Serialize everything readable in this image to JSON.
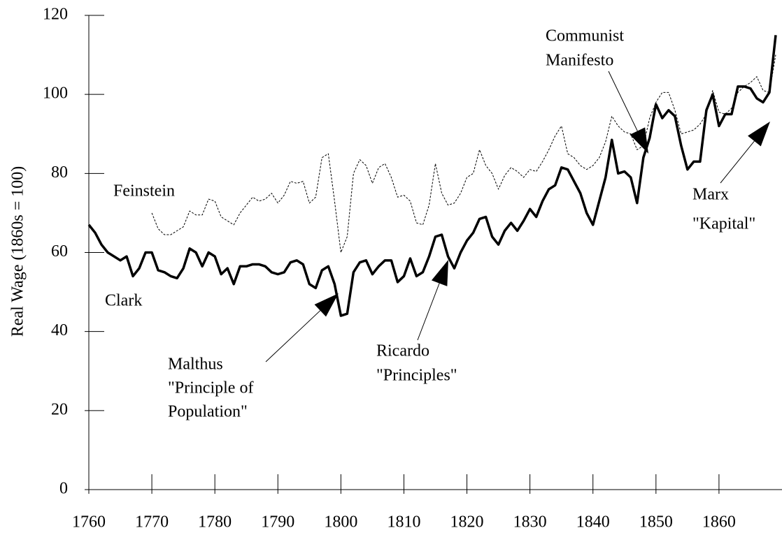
{
  "chart_data": {
    "type": "line",
    "y_label": "Real Wage (1860s = 100)",
    "x": [
      1760,
      1761,
      1762,
      1763,
      1764,
      1765,
      1766,
      1767,
      1768,
      1769,
      1770,
      1771,
      1772,
      1773,
      1774,
      1775,
      1776,
      1777,
      1778,
      1779,
      1780,
      1781,
      1782,
      1783,
      1784,
      1785,
      1786,
      1787,
      1788,
      1789,
      1790,
      1791,
      1792,
      1793,
      1794,
      1795,
      1796,
      1797,
      1798,
      1799,
      1800,
      1801,
      1802,
      1803,
      1804,
      1805,
      1806,
      1807,
      1808,
      1809,
      1810,
      1811,
      1812,
      1813,
      1814,
      1815,
      1816,
      1817,
      1818,
      1819,
      1820,
      1821,
      1822,
      1823,
      1824,
      1825,
      1826,
      1827,
      1828,
      1829,
      1830,
      1831,
      1832,
      1833,
      1834,
      1835,
      1836,
      1837,
      1838,
      1839,
      1840,
      1841,
      1842,
      1843,
      1844,
      1845,
      1846,
      1847,
      1848,
      1849,
      1850,
      1851,
      1852,
      1853,
      1854,
      1855,
      1856,
      1857,
      1858,
      1859,
      1860,
      1861,
      1862,
      1863,
      1864,
      1865,
      1866,
      1867,
      1868,
      1869
    ],
    "series": [
      {
        "name": "Clark",
        "color": "#000000",
        "style": "solid",
        "values": [
          67,
          65,
          62,
          60,
          59,
          58,
          59,
          54,
          56,
          60,
          60,
          55.5,
          55,
          54,
          53.5,
          56,
          61,
          60,
          56.5,
          60,
          59,
          54.5,
          56,
          52,
          56.5,
          56.5,
          57,
          57,
          56.5,
          55,
          54.5,
          55,
          57.5,
          58,
          57,
          52,
          51,
          55.5,
          56.5,
          52,
          44,
          44.5,
          55,
          57.5,
          58,
          54.5,
          56.5,
          58,
          58,
          52.5,
          54,
          58.5,
          54,
          55,
          59,
          64,
          64.5,
          59,
          56,
          60,
          63,
          65,
          68.5,
          69,
          64,
          62,
          65.5,
          67.5,
          65.5,
          68,
          71,
          69,
          73,
          76,
          77,
          81.5,
          81,
          78,
          75,
          70,
          67,
          73,
          79,
          88.5,
          80,
          80.5,
          79,
          72.5,
          84,
          89,
          97.5,
          94,
          96,
          94.5,
          87,
          81,
          83,
          83,
          96,
          100,
          92,
          95,
          95,
          102,
          102,
          101.5,
          99,
          98,
          100.5,
          115
        ]
      },
      {
        "name": "Feinstein",
        "color": "#000000",
        "style": "dashed",
        "values": [
          null,
          null,
          null,
          null,
          null,
          null,
          null,
          null,
          null,
          null,
          70,
          66,
          64.5,
          64.5,
          65.5,
          66.5,
          70.5,
          69.5,
          69.5,
          73.5,
          73,
          69,
          68,
          67,
          70,
          72,
          74,
          73,
          73.5,
          75,
          72.5,
          74.5,
          78,
          77.5,
          78,
          72.5,
          74,
          84,
          85,
          73,
          60,
          64,
          80,
          83.5,
          82,
          77.5,
          81.5,
          82.5,
          79,
          74,
          74.5,
          73,
          67.5,
          67,
          72,
          82.5,
          75,
          72,
          72.5,
          75,
          79,
          80,
          86,
          82,
          80,
          76,
          79.5,
          81.5,
          80.5,
          79,
          81,
          80.5,
          83,
          86,
          89.5,
          92,
          85,
          84,
          82,
          81,
          82,
          84,
          88,
          94.5,
          92,
          90.5,
          90,
          86,
          87,
          94,
          98,
          100.5,
          100.5,
          96,
          90,
          90.5,
          91,
          92.5,
          95,
          101,
          95.5,
          95,
          96.5,
          100.5,
          102,
          103,
          104.5,
          101,
          100.5,
          110
        ]
      }
    ],
    "annotations": [
      {
        "lines": [
          "Malthus",
          "\"Principle of",
          "Population\""
        ]
      },
      {
        "lines": [
          "Ricardo",
          "\"Principles\""
        ]
      },
      {
        "lines": [
          "Communist",
          "Manifesto"
        ]
      },
      {
        "lines": [
          "Marx",
          "\"Kapital\""
        ]
      }
    ],
    "xlim": [
      1760,
      1870
    ],
    "ylim": [
      0,
      120
    ],
    "xticks": [
      1760,
      1770,
      1780,
      1790,
      1800,
      1810,
      1820,
      1830,
      1840,
      1850,
      1860
    ],
    "yticks": [
      0,
      20,
      40,
      60,
      80,
      100,
      120
    ]
  }
}
